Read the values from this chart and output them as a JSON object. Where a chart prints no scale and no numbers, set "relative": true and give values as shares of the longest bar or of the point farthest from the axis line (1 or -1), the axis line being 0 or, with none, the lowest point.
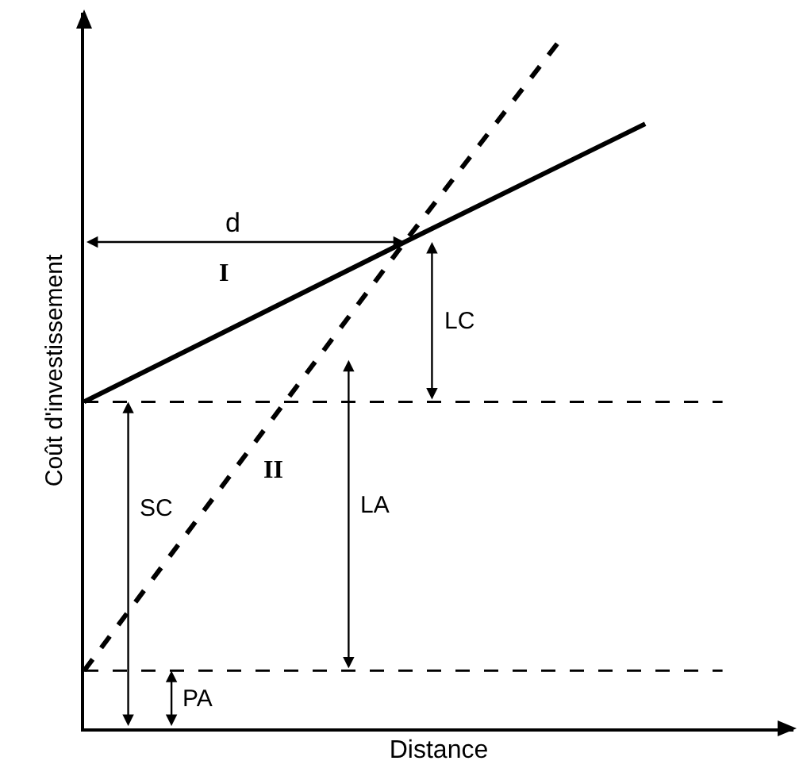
{
  "chart_data": {
    "type": "line",
    "relative": true,
    "xlabel": "Distance",
    "ylabel": "Coût d'investissement",
    "categories": [
      null,
      null,
      null,
      null,
      null,
      null,
      null,
      null,
      null
    ],
    "series": [
      {
        "name": "I",
        "color": "#000000",
        "line_style": "solid",
        "values": [
          0.47,
          null,
          null,
          null,
          0.7,
          null,
          null,
          0.87,
          null
        ]
      },
      {
        "name": "II",
        "color": "#000000",
        "line_style": "dashed",
        "values": [
          0.083,
          null,
          null,
          null,
          0.7,
          null,
          1.0,
          null,
          null
        ]
      }
    ],
    "ref_lines": [
      {
        "axis": "y",
        "value": 0.47,
        "line_style": "dashed",
        "color": "#000000"
      },
      {
        "axis": "y",
        "value": 0.083,
        "line_style": "dashed",
        "color": "#000000"
      }
    ],
    "annotations": [
      "d",
      "LC",
      "SC",
      "LA",
      "PA"
    ],
    "legend": false,
    "marker": "none"
  }
}
